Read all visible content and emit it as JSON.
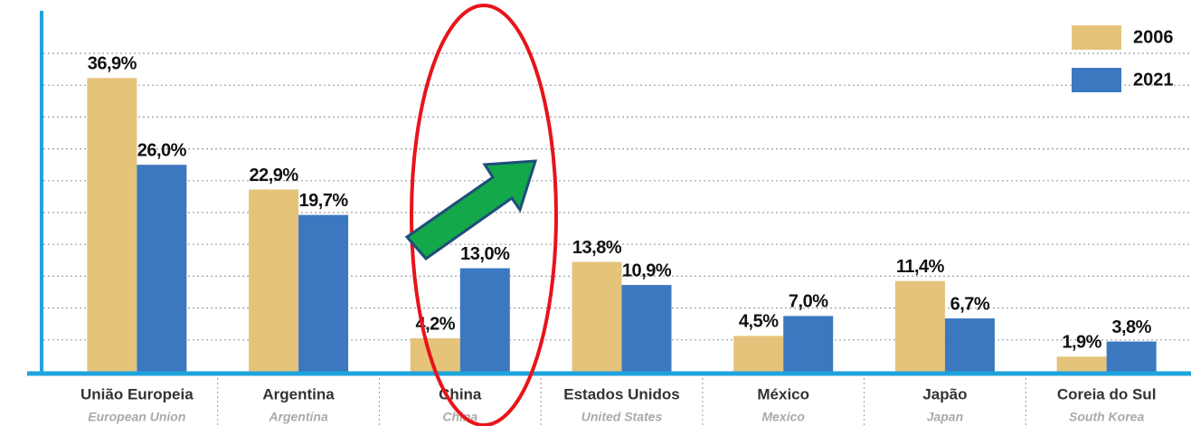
{
  "chart_data": {
    "type": "bar",
    "categories": [
      "União Europeia",
      "Argentina",
      "China",
      "Estados Unidos",
      "México",
      "Japão",
      "Coreia do Sul"
    ],
    "category_subtitles": [
      "European Union",
      "Argentina",
      "China",
      "United States",
      "Mexico",
      "Japan",
      "South Korea"
    ],
    "series": [
      {
        "name": "2006",
        "color": "#e5c37b",
        "values": [
          36.9,
          22.9,
          4.2,
          13.8,
          4.5,
          11.4,
          1.9
        ],
        "value_labels": [
          "36,9%",
          "22,9%",
          "4,2%",
          "13,8%",
          "4,5%",
          "11,4%",
          "1,9%"
        ]
      },
      {
        "name": "2021",
        "color": "#3b78c0",
        "values": [
          26.0,
          19.7,
          13.0,
          10.9,
          7.0,
          6.7,
          3.8
        ],
        "value_labels": [
          "26,0%",
          "19,7%",
          "13,0%",
          "10,9%",
          "7,0%",
          "6,7%",
          "3,8%"
        ]
      }
    ],
    "ylim": [
      0,
      45
    ],
    "yticks": [
      4,
      8,
      12,
      16,
      20,
      24,
      28,
      32,
      36,
      40
    ],
    "grid": true,
    "legend": "top-right"
  }
}
